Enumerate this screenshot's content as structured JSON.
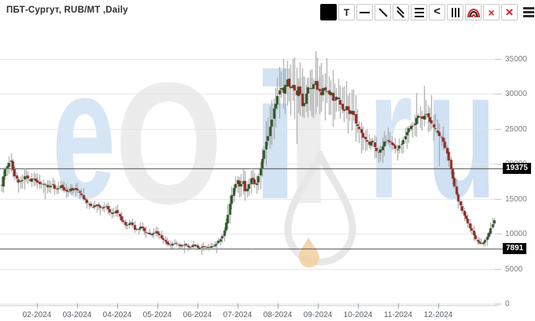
{
  "header": {
    "title": "ПБТ-Сургут, RUB/MT ,Daily"
  },
  "toolbar": {
    "buttons": [
      {
        "name": "black-color-swatch",
        "glyph": "■"
      },
      {
        "name": "text-tool",
        "glyph": "T"
      },
      {
        "name": "horizontal-line-tool",
        "glyph": "—"
      },
      {
        "name": "trend-line-tool",
        "glyph": "╲"
      },
      {
        "name": "parallel-channel-tool",
        "glyph": "╲╲"
      },
      {
        "name": "fibonacci-levels-tool",
        "glyph": "≡"
      },
      {
        "name": "fibonacci-fan-tool",
        "glyph": "<"
      },
      {
        "name": "fibonacci-timezones-tool",
        "glyph": "|||"
      },
      {
        "name": "fibonacci-arcs-tool",
        "glyph": "◠"
      },
      {
        "name": "delete-drawing",
        "glyph": "×"
      },
      {
        "name": "delete-all-drawings",
        "glyph": "×"
      },
      {
        "name": "menu",
        "glyph": "≡"
      }
    ]
  },
  "watermark": {
    "letters": [
      "e",
      "O",
      "i",
      "l",
      "r",
      "u"
    ]
  },
  "chart_data": {
    "type": "candlestick",
    "symbol": "ПБТ-Сургут",
    "units": "RUB/MT",
    "timeframe": "Daily",
    "ylim": [
      0,
      38500
    ],
    "y_ticks": [
      35000,
      30000,
      25000,
      20000,
      15000,
      10000,
      5000,
      0
    ],
    "x_ticks": [
      "02-2024",
      "03-2024",
      "04-2024",
      "05-2024",
      "06-2024",
      "07-2024",
      "08-2024",
      "09-2024",
      "10-2024",
      "11-2024",
      "12-2024"
    ],
    "levels": [
      {
        "label": "19375",
        "value": 19375
      },
      {
        "label": "7891",
        "value": 7891
      }
    ],
    "colors": {
      "up": "#2b5526",
      "down": "#8e2a22",
      "wick": "#9b9b9b",
      "grid": "#e4e4e4",
      "axis": "#c9cdd4",
      "level_line": "#4d4d4d",
      "tag_bg": "#000000",
      "tag_text": "#ffffff"
    },
    "close_path": [
      [
        2,
        16800
      ],
      [
        6,
        18800
      ],
      [
        10,
        19800
      ],
      [
        14,
        20800
      ],
      [
        17,
        19000
      ],
      [
        20,
        18300
      ],
      [
        24,
        17200
      ],
      [
        28,
        17600
      ],
      [
        33,
        18400
      ],
      [
        38,
        17600
      ],
      [
        43,
        17900
      ],
      [
        47,
        17700
      ],
      [
        52,
        16900
      ],
      [
        57,
        17400
      ],
      [
        62,
        16500
      ],
      [
        67,
        17100
      ],
      [
        72,
        16200
      ],
      [
        78,
        16800
      ],
      [
        84,
        15900
      ],
      [
        90,
        16400
      ],
      [
        98,
        16200
      ],
      [
        104,
        15400
      ],
      [
        110,
        14600
      ],
      [
        117,
        13700
      ],
      [
        124,
        14100
      ],
      [
        130,
        13500
      ],
      [
        136,
        13900
      ],
      [
        142,
        12900
      ],
      [
        149,
        13200
      ],
      [
        155,
        12100
      ],
      [
        161,
        11100
      ],
      [
        167,
        11600
      ],
      [
        173,
        10500
      ],
      [
        179,
        11000
      ],
      [
        185,
        10300
      ],
      [
        192,
        9900
      ],
      [
        199,
        10300
      ],
      [
        205,
        9500
      ],
      [
        211,
        8800
      ],
      [
        217,
        8300
      ],
      [
        223,
        8700
      ],
      [
        229,
        8200
      ],
      [
        235,
        8500
      ],
      [
        241,
        8100
      ],
      [
        247,
        8400
      ],
      [
        253,
        7900
      ],
      [
        259,
        8300
      ],
      [
        265,
        8000
      ],
      [
        271,
        8300
      ],
      [
        277,
        8700
      ],
      [
        283,
        9600
      ],
      [
        288,
        11500
      ],
      [
        293,
        14200
      ],
      [
        298,
        16800
      ],
      [
        303,
        17600
      ],
      [
        306,
        16400
      ],
      [
        309,
        17900
      ],
      [
        313,
        15900
      ],
      [
        317,
        17100
      ],
      [
        321,
        18300
      ],
      [
        325,
        16900
      ],
      [
        329,
        18000
      ],
      [
        333,
        20300
      ],
      [
        337,
        22400
      ],
      [
        341,
        23900
      ],
      [
        345,
        25700
      ],
      [
        349,
        27900
      ],
      [
        353,
        29300
      ],
      [
        357,
        30900
      ],
      [
        361,
        30100
      ],
      [
        365,
        32200
      ],
      [
        369,
        30600
      ],
      [
        373,
        31600
      ],
      [
        377,
        29900
      ],
      [
        381,
        31100
      ],
      [
        385,
        28200
      ],
      [
        389,
        29600
      ],
      [
        393,
        31300
      ],
      [
        397,
        30500
      ],
      [
        401,
        31700
      ],
      [
        405,
        30700
      ],
      [
        409,
        29900
      ],
      [
        413,
        30900
      ],
      [
        417,
        30000
      ],
      [
        421,
        30400
      ],
      [
        425,
        28700
      ],
      [
        429,
        29700
      ],
      [
        433,
        28300
      ],
      [
        437,
        27400
      ],
      [
        441,
        28400
      ],
      [
        445,
        26900
      ],
      [
        449,
        27500
      ],
      [
        453,
        25800
      ],
      [
        457,
        25100
      ],
      [
        461,
        24300
      ],
      [
        465,
        23500
      ],
      [
        469,
        22900
      ],
      [
        473,
        23400
      ],
      [
        477,
        22200
      ],
      [
        481,
        21500
      ],
      [
        485,
        22100
      ],
      [
        489,
        23100
      ],
      [
        493,
        23700
      ],
      [
        497,
        23200
      ],
      [
        501,
        22600
      ],
      [
        505,
        22000
      ],
      [
        509,
        22500
      ],
      [
        513,
        23300
      ],
      [
        517,
        24200
      ],
      [
        521,
        24900
      ],
      [
        525,
        25500
      ],
      [
        529,
        26200
      ],
      [
        533,
        26800
      ],
      [
        537,
        26400
      ],
      [
        541,
        27100
      ],
      [
        545,
        26500
      ],
      [
        549,
        25800
      ],
      [
        553,
        25000
      ],
      [
        557,
        24400
      ],
      [
        561,
        23700
      ],
      [
        565,
        22900
      ],
      [
        569,
        21400
      ],
      [
        573,
        19600
      ],
      [
        577,
        17400
      ],
      [
        581,
        15700
      ],
      [
        585,
        14100
      ],
      [
        589,
        12900
      ],
      [
        593,
        12100
      ],
      [
        597,
        11100
      ],
      [
        601,
        10200
      ],
      [
        605,
        9300
      ],
      [
        609,
        8700
      ],
      [
        613,
        8500
      ],
      [
        617,
        9000
      ],
      [
        621,
        9800
      ],
      [
        624,
        10700
      ],
      [
        627,
        11400
      ],
      [
        630,
        12100
      ]
    ]
  }
}
